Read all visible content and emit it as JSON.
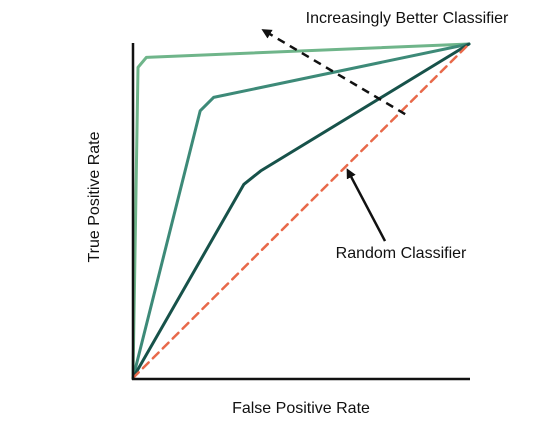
{
  "chart_data": {
    "type": "line",
    "title": "",
    "xlabel": "False Positive Rate",
    "ylabel": "True Positive Rate",
    "xlim": [
      0,
      1
    ],
    "ylim": [
      0,
      1
    ],
    "grid": false,
    "legend": "none",
    "series": [
      {
        "color": "#6fb58a",
        "points": [
          [
            0,
            0
          ],
          [
            0.015,
            0.93
          ],
          [
            0.04,
            0.96
          ],
          [
            1,
            1
          ]
        ]
      },
      {
        "color": "#3d8a78",
        "points": [
          [
            0,
            0
          ],
          [
            0.2,
            0.8
          ],
          [
            0.24,
            0.84
          ],
          [
            1,
            1
          ]
        ]
      },
      {
        "color": "#17524a",
        "points": [
          [
            0,
            0
          ],
          [
            0.33,
            0.58
          ],
          [
            0.38,
            0.62
          ],
          [
            1,
            1
          ]
        ]
      },
      {
        "color": "#e8694a",
        "dashed": true,
        "points": [
          [
            0,
            0
          ],
          [
            1,
            1
          ]
        ]
      }
    ],
    "annotations": [
      {
        "text": "Increasingly Better Classifier",
        "arrow": "dashed",
        "arrow_from": [
          0.81,
          0.79
        ],
        "arrow_to": [
          0.39,
          1.04
        ]
      },
      {
        "text": "Random Classifier",
        "arrow": "solid",
        "arrow_from": [
          0.75,
          0.41
        ],
        "arrow_to": [
          0.64,
          0.62
        ]
      }
    ]
  }
}
